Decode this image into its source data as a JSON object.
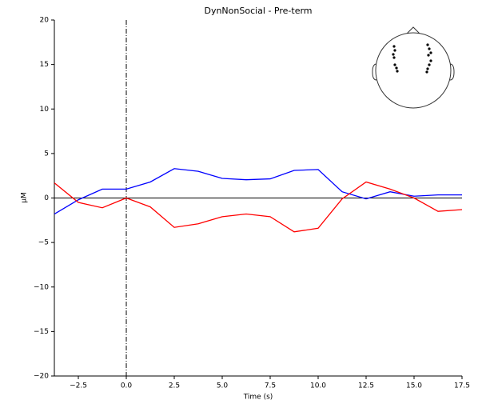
{
  "chart_data": {
    "type": "line",
    "title": "DynNonSocial - Pre-term",
    "xlabel": "Time (s)",
    "ylabel": "µM",
    "x": [
      -3.75,
      -2.5,
      -1.25,
      0,
      1.25,
      2.5,
      3.75,
      5,
      6.25,
      7.5,
      8.75,
      10,
      11.25,
      12.5,
      13.75,
      15,
      16.25,
      17.5
    ],
    "series": [
      {
        "color": "#0000ff",
        "values": [
          -1.8,
          -0.2,
          1.0,
          1.0,
          1.8,
          3.3,
          3.0,
          2.2,
          2.05,
          2.15,
          3.1,
          3.2,
          0.7,
          -0.1,
          0.7,
          0.2,
          0.35,
          0.35
        ]
      },
      {
        "color": "#ff0000",
        "values": [
          1.7,
          -0.5,
          -1.1,
          0,
          -1.0,
          -3.3,
          -2.9,
          -2.1,
          -1.8,
          -2.1,
          -3.8,
          -3.4,
          -0.1,
          1.8,
          1.0,
          0,
          -1.5,
          -1.3
        ]
      }
    ],
    "xlim": [
      -3.75,
      17.5
    ],
    "ylim": [
      -20,
      20
    ],
    "xticks": [
      {
        "value": -2.5,
        "label": "−2.5"
      },
      {
        "value": 0,
        "label": "0.0"
      },
      2.5,
      {
        "value": 5,
        "label": "5.0"
      },
      7.5,
      {
        "value": 10,
        "label": "10.0"
      },
      12.5,
      {
        "value": 15,
        "label": "15.0"
      },
      17.5
    ],
    "yticks": [
      {
        "value": -20,
        "label": "−20"
      },
      {
        "value": -15,
        "label": "−15"
      },
      {
        "value": -10,
        "label": "−10"
      },
      {
        "value": -5,
        "label": "−5"
      },
      0,
      5,
      10,
      15,
      20
    ]
  }
}
